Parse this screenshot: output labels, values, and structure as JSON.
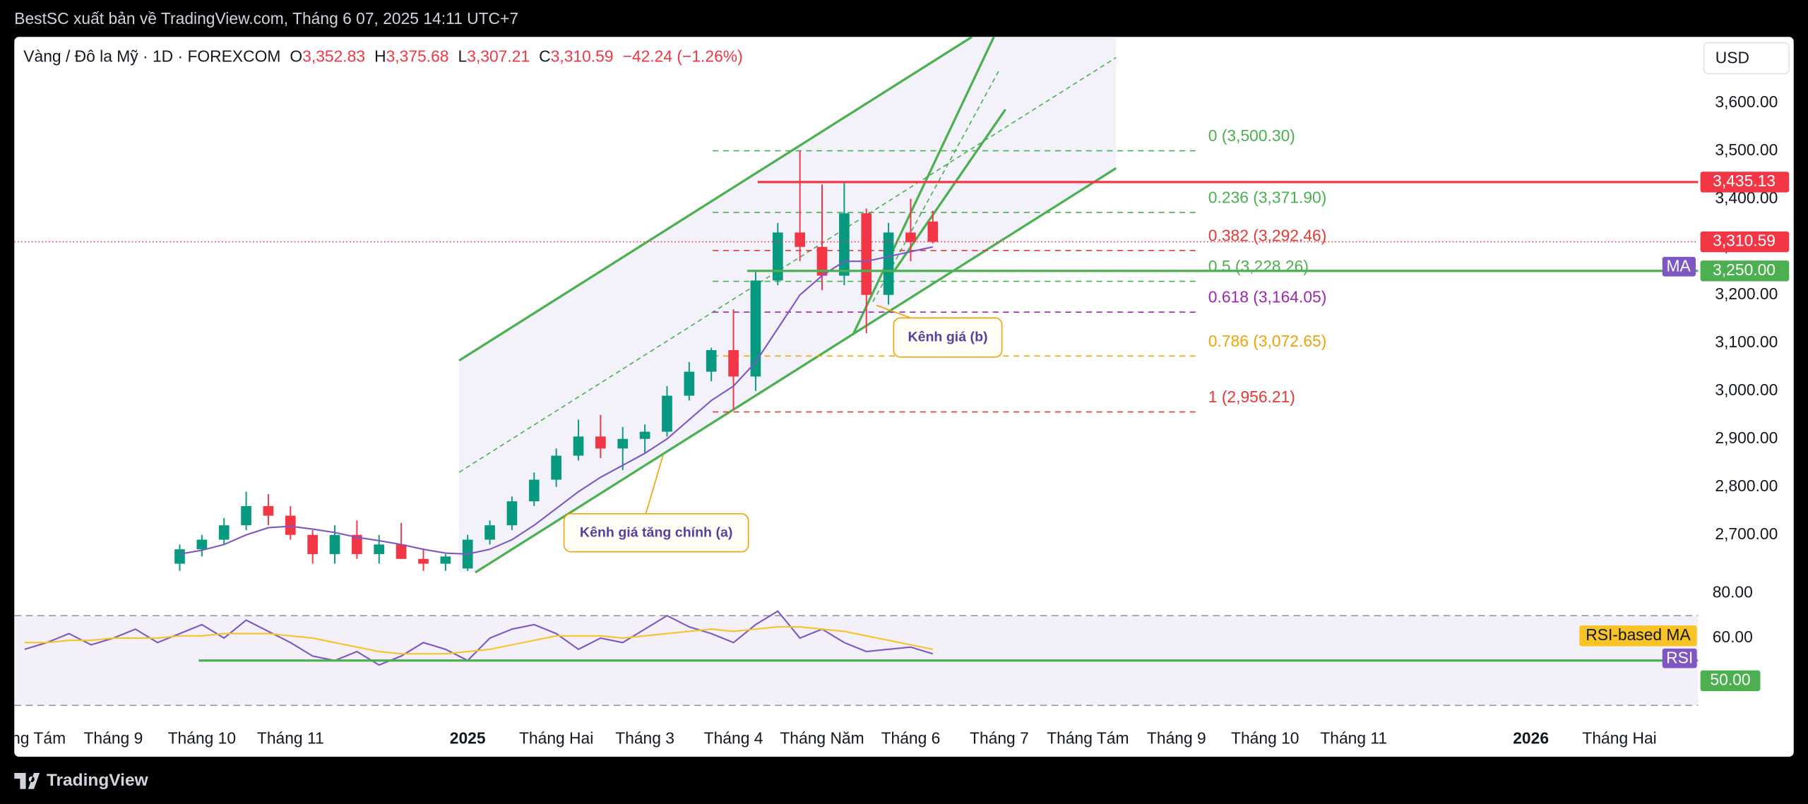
{
  "top_bar": {
    "publisher": "BestSC xuất bản về TradingView.com, Tháng 6 07, 2025 14:11 UTC+7"
  },
  "header": {
    "symbol": "Vàng / Đô la Mỹ · 1D · FOREXCOM",
    "o_label": "O",
    "open": "3,352.83",
    "h_label": "H",
    "high": "3,375.68",
    "l_label": "L",
    "low": "3,307.21",
    "c_label": "C",
    "close": "3,310.59",
    "change": "−42.24 (−1.26%)"
  },
  "currency": "USD",
  "footer": {
    "brand": "TradingView"
  },
  "chart_data": [
    {
      "type": "candlestick",
      "categories": [
        "Tháng Tám",
        null,
        null,
        null,
        "Tháng 9",
        null,
        null,
        null,
        "Tháng 10",
        null,
        null,
        null,
        "Tháng 11",
        null,
        null,
        null,
        null,
        null,
        null,
        null,
        "2025",
        null,
        null,
        null,
        "Tháng Hai",
        null,
        null,
        null,
        "Tháng 3",
        null,
        null,
        null,
        "Tháng 4",
        null,
        null,
        null,
        "Tháng Năm",
        null,
        null,
        null,
        "Tháng 6",
        null,
        null,
        null,
        "Tháng 7",
        null,
        null,
        null,
        "Tháng Tám",
        null,
        null,
        null,
        "Tháng 9",
        null,
        null,
        null,
        "Tháng 10",
        null,
        null,
        null,
        "Tháng 11",
        null,
        null,
        null,
        null,
        null,
        null,
        null,
        "2026",
        null,
        null,
        null,
        "Tháng Hai"
      ],
      "open": [
        null,
        null,
        null,
        null,
        null,
        null,
        null,
        2640,
        2670,
        2690,
        2720,
        2760,
        2740,
        2700,
        2660,
        2700,
        2660,
        2680,
        2650,
        2640,
        2630,
        2690,
        2720,
        2770,
        2815,
        2865,
        2905,
        2880,
        2900,
        2915,
        2990,
        3040,
        3085,
        3030,
        3230,
        3330,
        3300,
        3240,
        3370,
        3200,
        3330,
        3352.83,
        null,
        null,
        null,
        null,
        null,
        null,
        null,
        null,
        null,
        null,
        null,
        null,
        null,
        null,
        null,
        null,
        null,
        null,
        null,
        null,
        null,
        null,
        null,
        null,
        null,
        null,
        null,
        null,
        null,
        null,
        null
      ],
      "high": [
        null,
        null,
        null,
        null,
        null,
        null,
        null,
        2680,
        2700,
        2735,
        2790,
        2785,
        2760,
        2710,
        2720,
        2730,
        2700,
        2725,
        2670,
        2660,
        2700,
        2730,
        2780,
        2830,
        2880,
        2940,
        2950,
        2925,
        2930,
        3010,
        3060,
        3090,
        3170,
        3250,
        3350,
        3500,
        3430,
        3435,
        3380,
        3350,
        3400,
        3375.68,
        null,
        null,
        null,
        null,
        null,
        null,
        null,
        null,
        null,
        null,
        null,
        null,
        null,
        null,
        null,
        null,
        null,
        null,
        null,
        null,
        null,
        null,
        null,
        null,
        null,
        null,
        null,
        null,
        null,
        null,
        null
      ],
      "low": [
        null,
        null,
        null,
        null,
        null,
        null,
        null,
        2625,
        2655,
        2680,
        2710,
        2720,
        2690,
        2640,
        2640,
        2650,
        2640,
        2650,
        2625,
        2625,
        2625,
        2680,
        2710,
        2760,
        2800,
        2855,
        2860,
        2835,
        2870,
        2905,
        2980,
        3020,
        2960,
        3000,
        3220,
        3270,
        3210,
        3220,
        3120,
        3180,
        3270,
        3307.21,
        null,
        null,
        null,
        null,
        null,
        null,
        null,
        null,
        null,
        null,
        null,
        null,
        null,
        null,
        null,
        null,
        null,
        null,
        null,
        null,
        null,
        null,
        null,
        null,
        null,
        null,
        null,
        null,
        null,
        null,
        null
      ],
      "close": [
        null,
        null,
        null,
        null,
        null,
        null,
        null,
        2670,
        2690,
        2720,
        2760,
        2740,
        2700,
        2660,
        2700,
        2660,
        2680,
        2650,
        2640,
        2655,
        2690,
        2720,
        2770,
        2815,
        2865,
        2905,
        2880,
        2900,
        2915,
        2990,
        3040,
        3085,
        3030,
        3230,
        3330,
        3300,
        3240,
        3370,
        3200,
        3330,
        3310,
        3310.59,
        null,
        null,
        null,
        null,
        null,
        null,
        null,
        null,
        null,
        null,
        null,
        null,
        null,
        null,
        null,
        null,
        null,
        null,
        null,
        null,
        null,
        null,
        null,
        null,
        null,
        null,
        null,
        null,
        null,
        null,
        null
      ],
      "up_color": "#089981",
      "down_color": "#f23645",
      "series": [
        {
          "name": "MA",
          "color": "#7e57c2",
          "values": [
            null,
            null,
            null,
            null,
            null,
            null,
            null,
            2660,
            2668,
            2680,
            2700,
            2715,
            2718,
            2712,
            2705,
            2695,
            2688,
            2680,
            2670,
            2662,
            2660,
            2670,
            2690,
            2720,
            2755,
            2790,
            2820,
            2845,
            2870,
            2900,
            2940,
            2980,
            3010,
            3060,
            3130,
            3200,
            3240,
            3270,
            3270,
            3280,
            3290,
            3300,
            null,
            null,
            null,
            null,
            null,
            null,
            null,
            null,
            null,
            null,
            null,
            null,
            null,
            null,
            null,
            null,
            null,
            null,
            null,
            null,
            null,
            null,
            null,
            null,
            null,
            null,
            null,
            null,
            null,
            null,
            null
          ]
        }
      ],
      "ylim": [
        2619.3,
        3737.6
      ],
      "yticks": [
        {
          "value": 2700,
          "label": "2,700.00"
        },
        {
          "value": 2800,
          "label": "2,800.00"
        },
        {
          "value": 2900,
          "label": "2,900.00"
        },
        {
          "value": 3000,
          "label": "3,000.00"
        },
        {
          "value": 3100,
          "label": "3,100.00"
        },
        {
          "value": 3200,
          "label": "3,200.00"
        },
        {
          "value": 3300,
          "label": "3,300.00"
        },
        {
          "value": 3400,
          "label": "3,400.00"
        },
        {
          "value": 3500,
          "label": "3,500.00"
        },
        {
          "value": 3600,
          "label": "3,600.00"
        }
      ],
      "hlines": [
        {
          "value": 3435.13,
          "label": "3,435.13",
          "color": "#f23645",
          "style": "solid"
        },
        {
          "value": 3310.59,
          "label": "3,310.59",
          "color": "#f23645",
          "style": "dotted"
        },
        {
          "value": 3250,
          "label": "3,250.00",
          "color": "#4caf50",
          "style": "solid"
        }
      ],
      "fib_levels": [
        {
          "value": 3500.3,
          "label": "0 (3,500.30)",
          "color": "#4caf50"
        },
        {
          "value": 3371.9,
          "label": "0.236 (3,371.90)",
          "color": "#4caf50"
        },
        {
          "value": 3292.46,
          "label": "0.382 (3,292.46)",
          "color": "#e53935"
        },
        {
          "value": 3228.26,
          "label": "0.5 (3,228.26)",
          "color": "#4caf50"
        },
        {
          "value": 3164.05,
          "label": "0.618 (3,164.05)",
          "color": "#9c27b0"
        },
        {
          "value": 3072.65,
          "label": "0.786 (3,072.65)",
          "color": "#f0a30a"
        },
        {
          "value": 2956.21,
          "label": "1 (2,956.21)",
          "color": "#e53935"
        }
      ],
      "annotations": [
        "Kênh giá tăng chính (a)",
        "Kênh giá (b)"
      ]
    },
    {
      "type": "line",
      "series": [
        {
          "name": "RSI",
          "color": "#7e57c2",
          "values": [
            55,
            58,
            62,
            57,
            60,
            64,
            58,
            62,
            66,
            60,
            68,
            63,
            58,
            52,
            50,
            54,
            48,
            52,
            58,
            55,
            50,
            60,
            64,
            66,
            62,
            55,
            60,
            58,
            64,
            70,
            65,
            62,
            58,
            66,
            72,
            60,
            64,
            58,
            54,
            55,
            56,
            53,
            null,
            null,
            null,
            null,
            null,
            null,
            null,
            null,
            null,
            null,
            null,
            null,
            null,
            null,
            null,
            null,
            null,
            null,
            null,
            null,
            null,
            null,
            null,
            null,
            null,
            null,
            null,
            null,
            null,
            null,
            null
          ]
        },
        {
          "name": "RSI-based MA",
          "color": "#f7c325",
          "values": [
            58,
            58,
            59,
            59,
            60,
            60,
            60,
            61,
            61,
            62,
            62,
            62,
            61,
            60,
            58,
            56,
            54,
            53,
            53,
            53,
            54,
            55,
            57,
            59,
            61,
            61,
            61,
            60,
            61,
            62,
            63,
            64,
            63,
            64,
            65,
            65,
            64,
            63,
            61,
            59,
            57,
            55,
            null,
            null,
            null,
            null,
            null,
            null,
            null,
            null,
            null,
            null,
            null,
            null,
            null,
            null,
            null,
            null,
            null,
            null,
            null,
            null,
            null,
            null,
            null,
            null,
            null,
            null,
            null,
            null,
            null,
            null,
            null
          ]
        }
      ],
      "ylim": [
        22,
        87.7
      ],
      "yticks": [
        {
          "value": 80,
          "label": "80.00"
        },
        {
          "value": 60,
          "label": "60.00"
        }
      ],
      "band": [
        30,
        70
      ],
      "hlines": [
        {
          "value": 50,
          "label": "50.00",
          "color": "#4caf50"
        }
      ]
    }
  ]
}
